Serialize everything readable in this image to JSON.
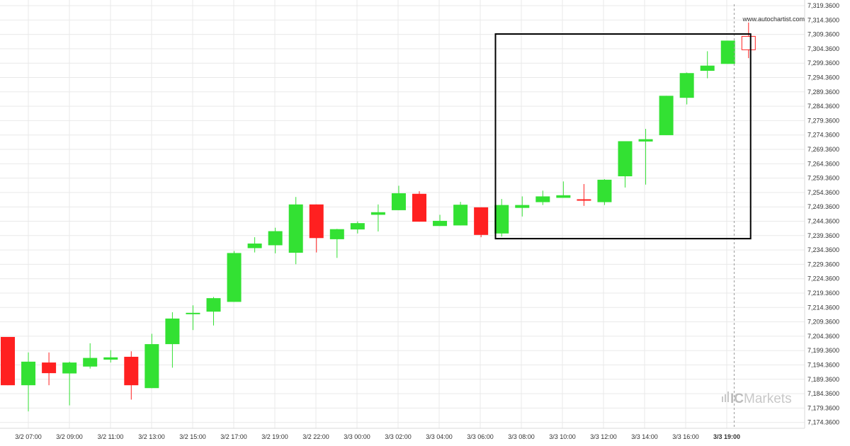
{
  "watermark_url": "www.autochartist.com",
  "brand": {
    "mark": "IC",
    "name": "Markets"
  },
  "colors": {
    "bull": "#33e133",
    "bear": "#ff2020",
    "grid": "#e9e9e9",
    "axis_text": "#333333",
    "pattern_box": "#000000",
    "vline": "#9a9a9a",
    "brand_gray": "#c8c8c8"
  },
  "chart_data": {
    "type": "candlestick",
    "title": "",
    "xlabel": "",
    "ylabel": "",
    "ylim": [
      7171.36,
      7320.36
    ],
    "y_ticks": [
      "7,319.3600",
      "7,314.3600",
      "7,309.3600",
      "7,304.3600",
      "7,299.3600",
      "7,294.3600",
      "7,289.3600",
      "7,284.3600",
      "7,279.3600",
      "7,274.3600",
      "7,269.3600",
      "7,264.3600",
      "7,259.3600",
      "7,254.3600",
      "7,249.3600",
      "7,244.3600",
      "7,239.3600",
      "7,234.3600",
      "7,229.3600",
      "7,224.3600",
      "7,219.3600",
      "7,214.3600",
      "7,209.3600",
      "7,204.3600",
      "7,199.3600",
      "7,194.3600",
      "7,189.3600",
      "7,184.3600",
      "7,179.3600",
      "7,174.3600"
    ],
    "x_ticks": [
      "3/2 07:00",
      "3/2 09:00",
      "3/2 11:00",
      "3/2 13:00",
      "3/2 15:00",
      "3/2 17:00",
      "3/2 19:00",
      "3/2 22:00",
      "3/3 00:00",
      "3/3 02:00",
      "3/3 04:00",
      "3/3 06:00",
      "3/3 08:00",
      "3/3 10:00",
      "3/3 12:00",
      "3/3 14:00",
      "3/3 16:00",
      "3/3 19:00"
    ],
    "x_tick_bold": "3/3 19:00",
    "candles": [
      {
        "o": 7204.1,
        "h": 7204.1,
        "l": 7187.3,
        "c": 7187.3
      },
      {
        "o": 7187.3,
        "h": 7198.7,
        "l": 7178.2,
        "c": 7195.5
      },
      {
        "o": 7195.2,
        "h": 7198.7,
        "l": 7187.3,
        "c": 7191.5
      },
      {
        "o": 7191.4,
        "h": 7195.5,
        "l": 7180.3,
        "c": 7195.2
      },
      {
        "o": 7193.8,
        "h": 7201.9,
        "l": 7193.1,
        "c": 7196.8
      },
      {
        "o": 7196.2,
        "h": 7199.5,
        "l": 7195.2,
        "c": 7197.0
      },
      {
        "o": 7197.2,
        "h": 7199.1,
        "l": 7182.3,
        "c": 7187.3
      },
      {
        "o": 7186.3,
        "h": 7205.2,
        "l": 7186.3,
        "c": 7201.6
      },
      {
        "o": 7201.6,
        "h": 7212.7,
        "l": 7193.4,
        "c": 7210.5
      },
      {
        "o": 7212.2,
        "h": 7215.1,
        "l": 7206.5,
        "c": 7212.5
      },
      {
        "o": 7212.9,
        "h": 7218.0,
        "l": 7208.1,
        "c": 7217.6
      },
      {
        "o": 7216.3,
        "h": 7234.0,
        "l": 7216.3,
        "c": 7233.3
      },
      {
        "o": 7235.0,
        "h": 7238.8,
        "l": 7233.5,
        "c": 7236.6
      },
      {
        "o": 7236.0,
        "h": 7242.1,
        "l": 7233.2,
        "c": 7240.9
      },
      {
        "o": 7233.4,
        "h": 7252.8,
        "l": 7229.4,
        "c": 7250.2
      },
      {
        "o": 7250.2,
        "h": 7250.2,
        "l": 7233.5,
        "c": 7238.5
      },
      {
        "o": 7238.1,
        "h": 7241.7,
        "l": 7231.6,
        "c": 7241.6
      },
      {
        "o": 7241.5,
        "h": 7244.3,
        "l": 7240.1,
        "c": 7243.7
      },
      {
        "o": 7246.6,
        "h": 7250.2,
        "l": 7240.8,
        "c": 7247.5
      },
      {
        "o": 7248.2,
        "h": 7256.7,
        "l": 7248.2,
        "c": 7254.1
      },
      {
        "o": 7253.9,
        "h": 7254.8,
        "l": 7244.2,
        "c": 7244.2
      },
      {
        "o": 7242.7,
        "h": 7246.6,
        "l": 7242.7,
        "c": 7244.5
      },
      {
        "o": 7242.9,
        "h": 7251.1,
        "l": 7242.9,
        "c": 7250.1
      },
      {
        "o": 7249.2,
        "h": 7249.2,
        "l": 7238.8,
        "c": 7239.6
      },
      {
        "o": 7240.1,
        "h": 7252.1,
        "l": 7239.0,
        "c": 7250.0
      },
      {
        "o": 7249.0,
        "h": 7253.0,
        "l": 7246.0,
        "c": 7250.0
      },
      {
        "o": 7251.0,
        "h": 7255.0,
        "l": 7250.0,
        "c": 7253.0
      },
      {
        "o": 7252.5,
        "h": 7258.2,
        "l": 7252.5,
        "c": 7253.4
      },
      {
        "o": 7252.0,
        "h": 7257.3,
        "l": 7249.7,
        "c": 7251.9
      },
      {
        "o": 7251.0,
        "h": 7259.0,
        "l": 7250.0,
        "c": 7258.8
      },
      {
        "o": 7260.0,
        "h": 7272.2,
        "l": 7256.1,
        "c": 7272.2
      },
      {
        "o": 7272.1,
        "h": 7276.5,
        "l": 7257.1,
        "c": 7272.9
      },
      {
        "o": 7274.3,
        "h": 7288.0,
        "l": 7274.3,
        "c": 7288.0
      },
      {
        "o": 7287.3,
        "h": 7296.1,
        "l": 7285.0,
        "c": 7295.9
      },
      {
        "o": 7296.7,
        "h": 7303.5,
        "l": 7294.1,
        "c": 7298.5
      },
      {
        "o": 7299.1,
        "h": 7307.2,
        "l": 7299.1,
        "c": 7307.2
      },
      {
        "o": 7308.8,
        "h": 7313.5,
        "l": 7301.1,
        "c": 7303.9
      }
    ],
    "last_candle_hollow": true,
    "pattern_box": {
      "x_start_candle": 23.7,
      "x_end_candle": 36.1,
      "y_top": 7309.5,
      "y_bottom": 7238.3
    },
    "current_time_candle": 35.3
  }
}
